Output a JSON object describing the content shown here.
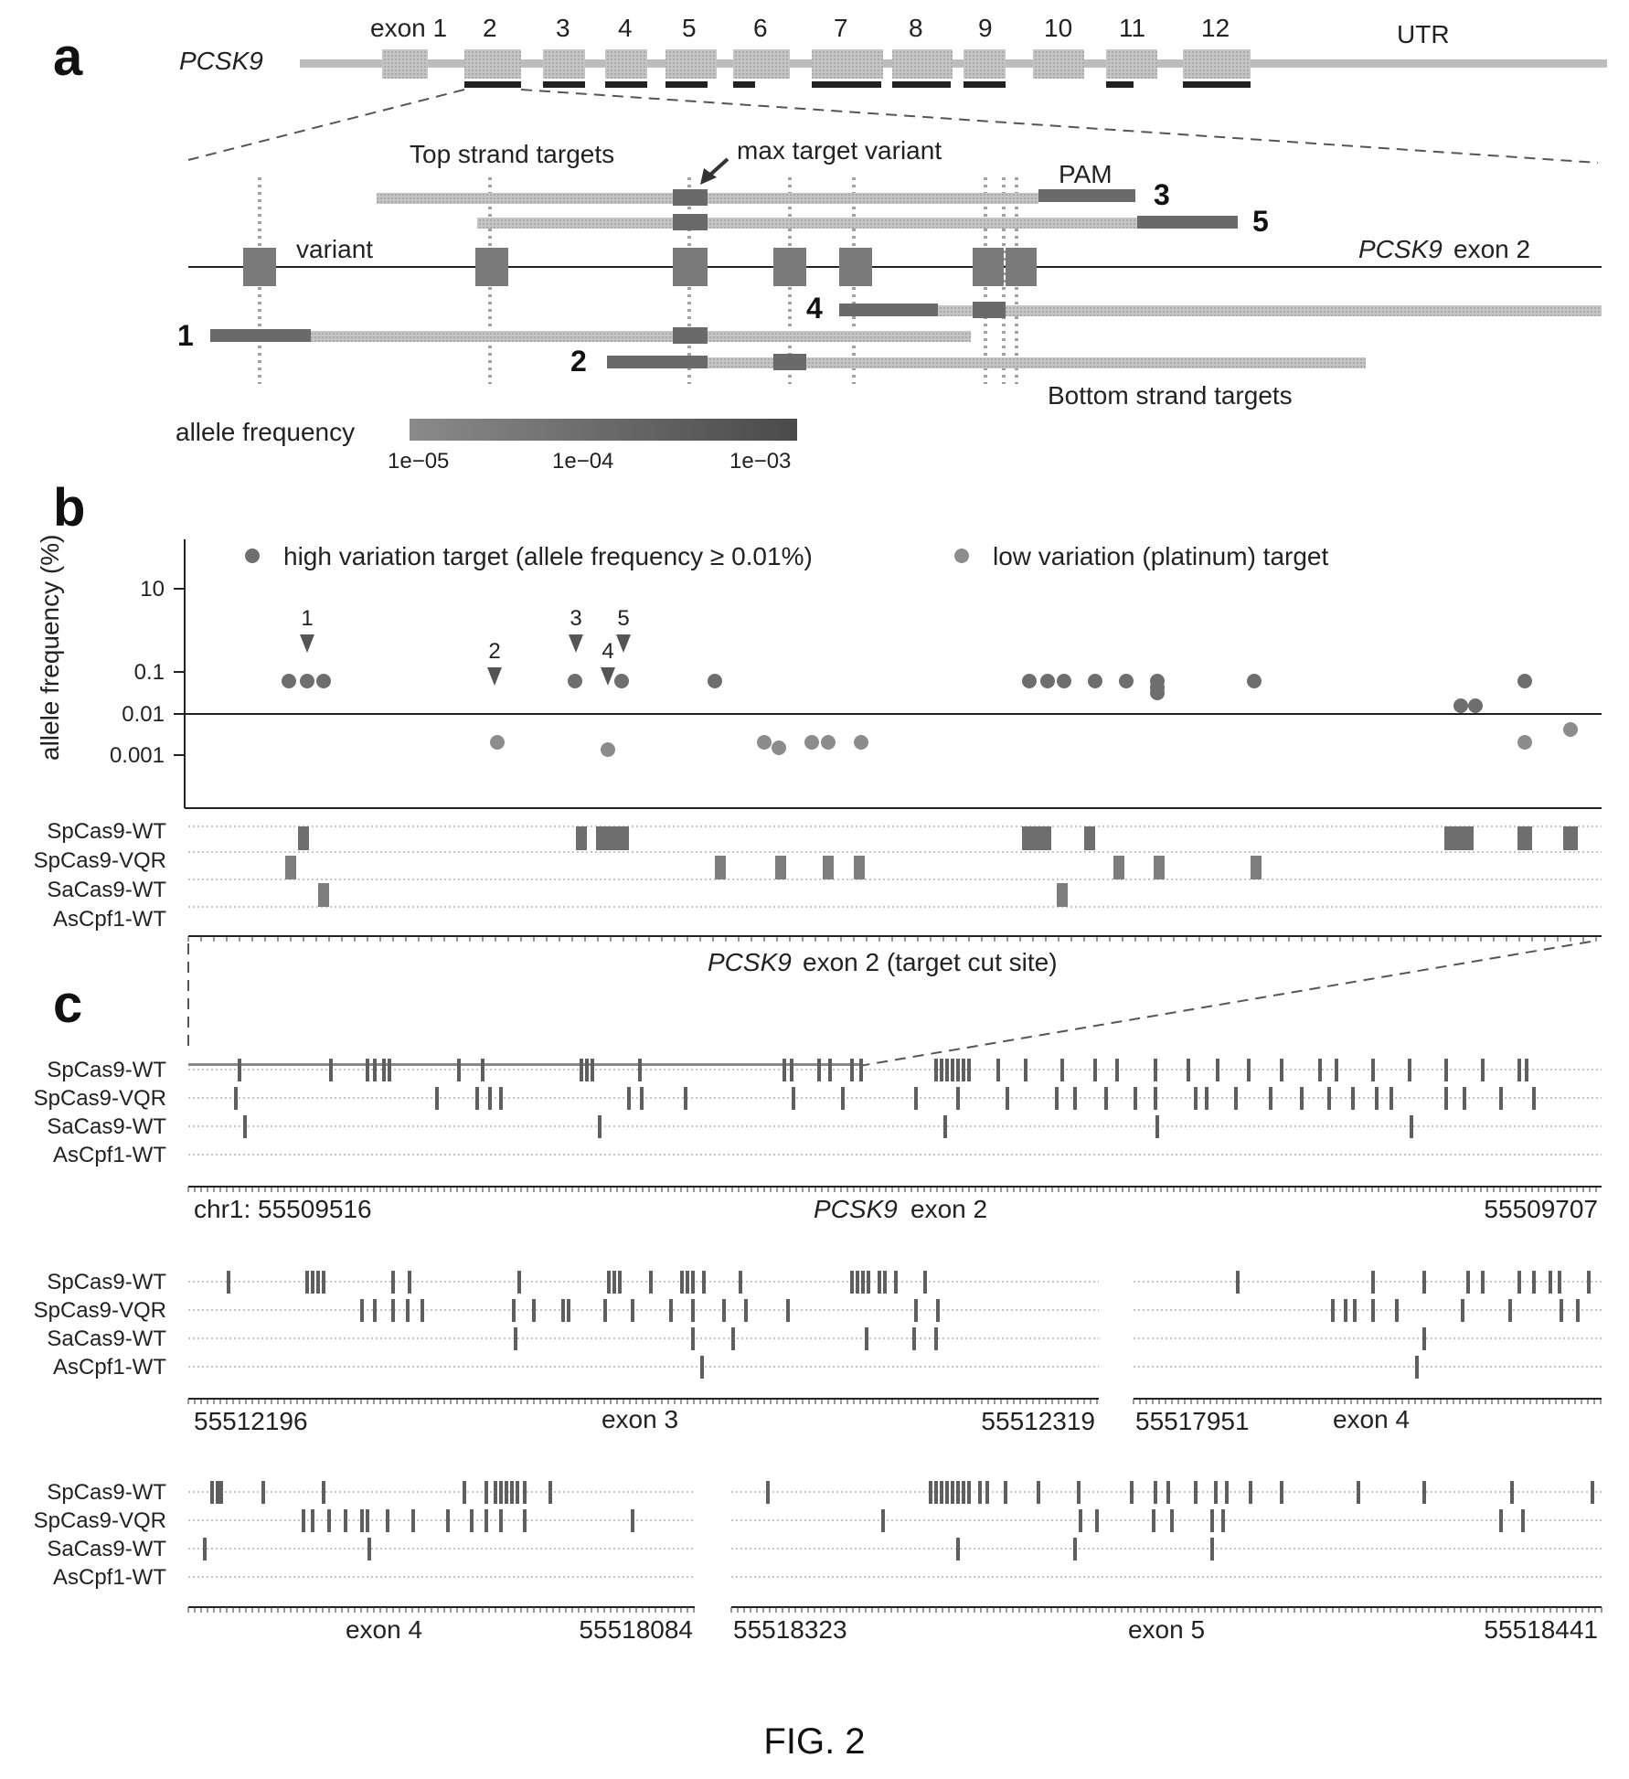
{
  "panel_a": {
    "letter": "a",
    "gene": "PCSK9",
    "exon_labels": [
      "exon 1",
      "2",
      "3",
      "4",
      "5",
      "6",
      "7",
      "8",
      "9",
      "10",
      "11",
      "12"
    ],
    "utr_label": "UTR",
    "top_strand_label": "Top strand targets",
    "max_target_label": "max target variant",
    "pam_label": "PAM",
    "variant_label": "variant",
    "exon2_gene": "PCSK9",
    "exon2_suffix": " exon 2",
    "bottom_strand_label": "Bottom strand targets",
    "target_numbers": [
      "1",
      "2",
      "3",
      "4",
      "5"
    ],
    "allele_freq_label": "allele frequency",
    "scale_ticks": [
      "1e−05",
      "1e−04",
      "1e−03"
    ]
  },
  "panel_b": {
    "letter": "b",
    "legend_high": "high variation target (allele frequency ≥ 0.01%)",
    "legend_low": "low variation (platinum) target",
    "ylabel": "allele frequency (%)",
    "yticks": [
      "10",
      "0.1",
      "0.01",
      "0.001"
    ],
    "arrow_labels": [
      "1",
      "2",
      "3",
      "4",
      "5"
    ],
    "track_labels": [
      "SpCas9-WT",
      "SpCas9-VQR",
      "SaCas9-WT",
      "AsCpf1-WT"
    ],
    "xaxis_gene": "PCSK9",
    "xaxis_suffix": " exon 2 (target cut site)"
  },
  "panel_c": {
    "letter": "c",
    "track_labels": [
      "SpCas9-WT",
      "SpCas9-VQR",
      "SaCas9-WT",
      "AsCpf1-WT"
    ],
    "exon2": {
      "left": "chr1: 55509516",
      "gene": "PCSK9",
      "suffix": " exon 2",
      "right": "55509707"
    },
    "exon3": {
      "left": "55512196",
      "title": "exon 3",
      "right": "55512319"
    },
    "exon4a": {
      "left": "55517951",
      "title": "exon 4"
    },
    "exon4b": {
      "title": "exon 4",
      "right": "55518084"
    },
    "exon5": {
      "left": "55518323",
      "title": "exon 5",
      "right": "55518441"
    }
  },
  "figure_caption": "FIG. 2",
  "colors": {
    "dark": "#6e6e6e",
    "medium": "#8c8c8c",
    "light": "#bdbdbd",
    "line": "#222222"
  }
}
